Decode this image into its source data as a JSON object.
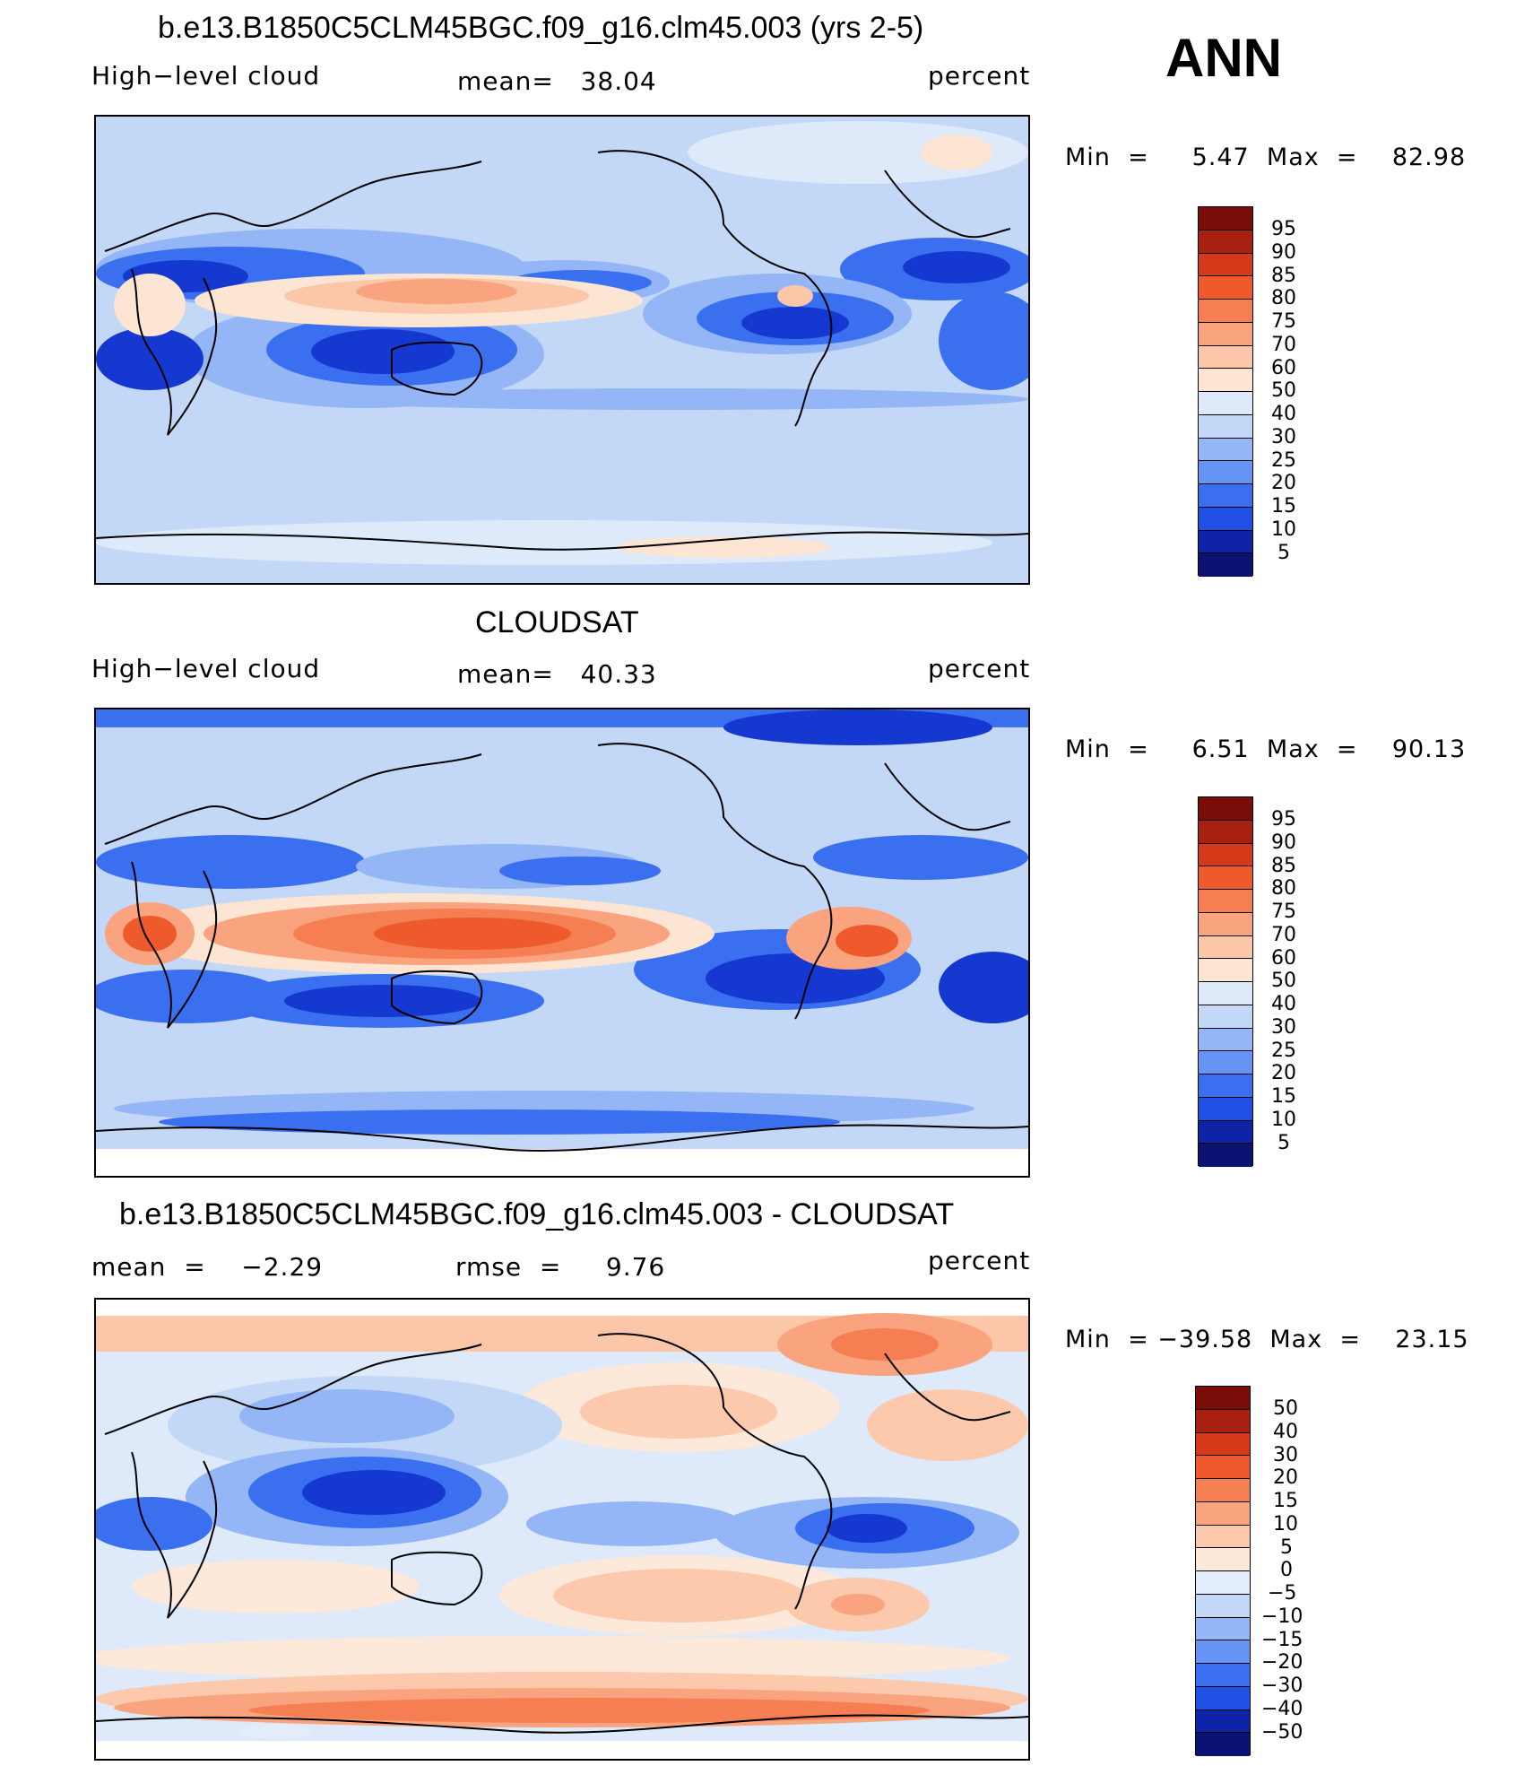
{
  "season": "ANN",
  "colors": {
    "abs_scale": [
      "#0b1372",
      "#0f23a6",
      "#1538d0",
      "#2051e6",
      "#3a6fef",
      "#6594f4",
      "#94b5f6",
      "#c3d7f7",
      "#deeafa",
      "#fde5d3",
      "#fcc7a8",
      "#f9a47e",
      "#f57e52",
      "#ee5a2c",
      "#d6381a",
      "#a8200f",
      "#7a0d08"
    ],
    "diff_scale": [
      "#0b1372",
      "#0f23a6",
      "#1538d0",
      "#2051e6",
      "#3a6fef",
      "#6594f4",
      "#94b5f6",
      "#c3d7f7",
      "#e3edfb",
      "#fde9da",
      "#fcc9ac",
      "#f9a47e",
      "#f57e52",
      "#ee5a2c",
      "#d6381a",
      "#a8200f",
      "#7a0d08"
    ]
  },
  "panels": [
    {
      "title": "b.e13.B1850C5CLM45BGC.f09_g16.clm45.003 (yrs 2-5)",
      "left_label": "High−level cloud",
      "center_label": "mean=   38.04",
      "right_label": "percent",
      "minmax": "Min  =     5.47  Max  =    82.98",
      "colorbar_labels": [
        "95",
        "90",
        "85",
        "80",
        "75",
        "70",
        "60",
        "50",
        "40",
        "30",
        "25",
        "20",
        "15",
        "10",
        "5"
      ]
    },
    {
      "title": "CLOUDSAT",
      "left_label": "High−level cloud",
      "center_label": "mean=   40.33",
      "right_label": "percent",
      "minmax": "Min  =     6.51  Max  =    90.13",
      "colorbar_labels": [
        "95",
        "90",
        "85",
        "80",
        "75",
        "70",
        "60",
        "50",
        "40",
        "30",
        "25",
        "20",
        "15",
        "10",
        "5"
      ]
    },
    {
      "title": "b.e13.B1850C5CLM45BGC.f09_g16.clm45.003 - CLOUDSAT",
      "left_label": "mean  =    −2.29",
      "center_label": "rmse  =     9.76",
      "right_label": "percent",
      "minmax": "Min  = −39.58  Max  =    23.15",
      "colorbar_labels": [
        "50",
        "40",
        "30",
        "20",
        "15",
        "10",
        "5",
        "0",
        "−5",
        "−10",
        "−15",
        "−20",
        "−30",
        "−40",
        "−50"
      ]
    }
  ]
}
